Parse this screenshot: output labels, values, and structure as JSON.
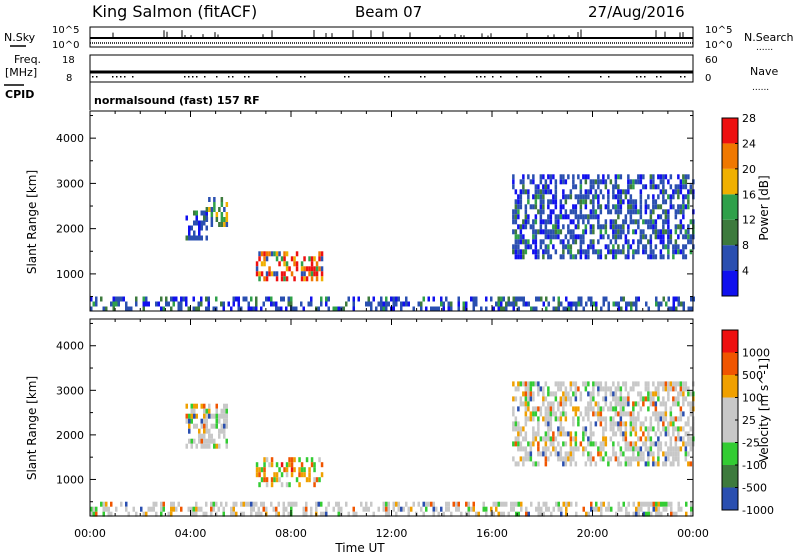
{
  "header": {
    "radar": "King Salmon (fitACF)",
    "beam": "Beam 07",
    "date": "27/Aug/2016"
  },
  "strip_labels": {
    "nsky": "N.Sky",
    "nsearch": "N.Search",
    "freq_top": "Freq.",
    "freq_unit": "[MHz]",
    "cpid": "CPID",
    "nave": "Nave",
    "dots": "......"
  },
  "strip_ticks": {
    "nsky_top": "10^5",
    "nsky_bottom": "10^0",
    "freq_top": "18",
    "freq_bottom": "8",
    "nave_top": "60",
    "nave_bottom": "0"
  },
  "cpid_text": "normalsound (fast) 157 RF",
  "colors": {
    "power": [
      "#1010ee",
      "#2a4fb0",
      "#3d7a3d",
      "#2fa04a",
      "#f0b000",
      "#f07800",
      "#ee1010"
    ],
    "velocity": [
      "#ee1010",
      "#f05500",
      "#f0a000",
      "#c8c8c8",
      "#c8c8c8",
      "#33cc33",
      "#3d7a3d",
      "#2a4fb0"
    ]
  },
  "chart_data": [
    {
      "type": "heatmap",
      "name": "power",
      "xlabel": "",
      "ylabel": "Slant Range [km]",
      "xlim": [
        0,
        24
      ],
      "ylim": [
        180,
        4600
      ],
      "y_ticks": [
        "1000",
        "2000",
        "3000",
        "4000"
      ],
      "colorbar": {
        "label": "Power [dB]",
        "ticks": [
          "4",
          "8",
          "12",
          "16",
          "20",
          "24",
          "28"
        ]
      },
      "regions": [
        {
          "t": [
            3.8,
            4.6
          ],
          "r": [
            1800,
            2400
          ],
          "level": "low"
        },
        {
          "t": [
            4.6,
            5.4
          ],
          "r": [
            2100,
            2700
          ],
          "level": "mid"
        },
        {
          "t": [
            6.6,
            9.2
          ],
          "r": [
            900,
            1500
          ],
          "level": "high"
        },
        {
          "t": [
            16.8,
            24.0
          ],
          "r": [
            1400,
            3200
          ],
          "level": "low"
        },
        {
          "t": [
            0.0,
            24.0
          ],
          "r": [
            180,
            500
          ],
          "level": "low"
        }
      ]
    },
    {
      "type": "heatmap",
      "name": "velocity",
      "xlabel": "Time UT",
      "ylabel": "Slant Range [km]",
      "xlim": [
        0,
        24
      ],
      "ylim": [
        180,
        4600
      ],
      "x_ticks": [
        "00:00",
        "04:00",
        "08:00",
        "12:00",
        "16:00",
        "20:00",
        "00:00"
      ],
      "y_ticks": [
        "1000",
        "2000",
        "3000",
        "4000"
      ],
      "colorbar": {
        "label": "Velocity [m s^-1]",
        "ticks": [
          "1000",
          "500",
          "100",
          "25",
          "-25",
          "-100",
          "-500",
          "-1000"
        ]
      },
      "regions": [
        {
          "t": [
            3.8,
            5.4
          ],
          "r": [
            1800,
            2700
          ],
          "level": "near-zero"
        },
        {
          "t": [
            6.6,
            9.2
          ],
          "r": [
            900,
            1500
          ],
          "level": "negative"
        },
        {
          "t": [
            16.8,
            24.0
          ],
          "r": [
            1400,
            3200
          ],
          "level": "near-zero"
        },
        {
          "t": [
            0.0,
            24.0
          ],
          "r": [
            180,
            500
          ],
          "level": "near-zero"
        }
      ]
    }
  ]
}
